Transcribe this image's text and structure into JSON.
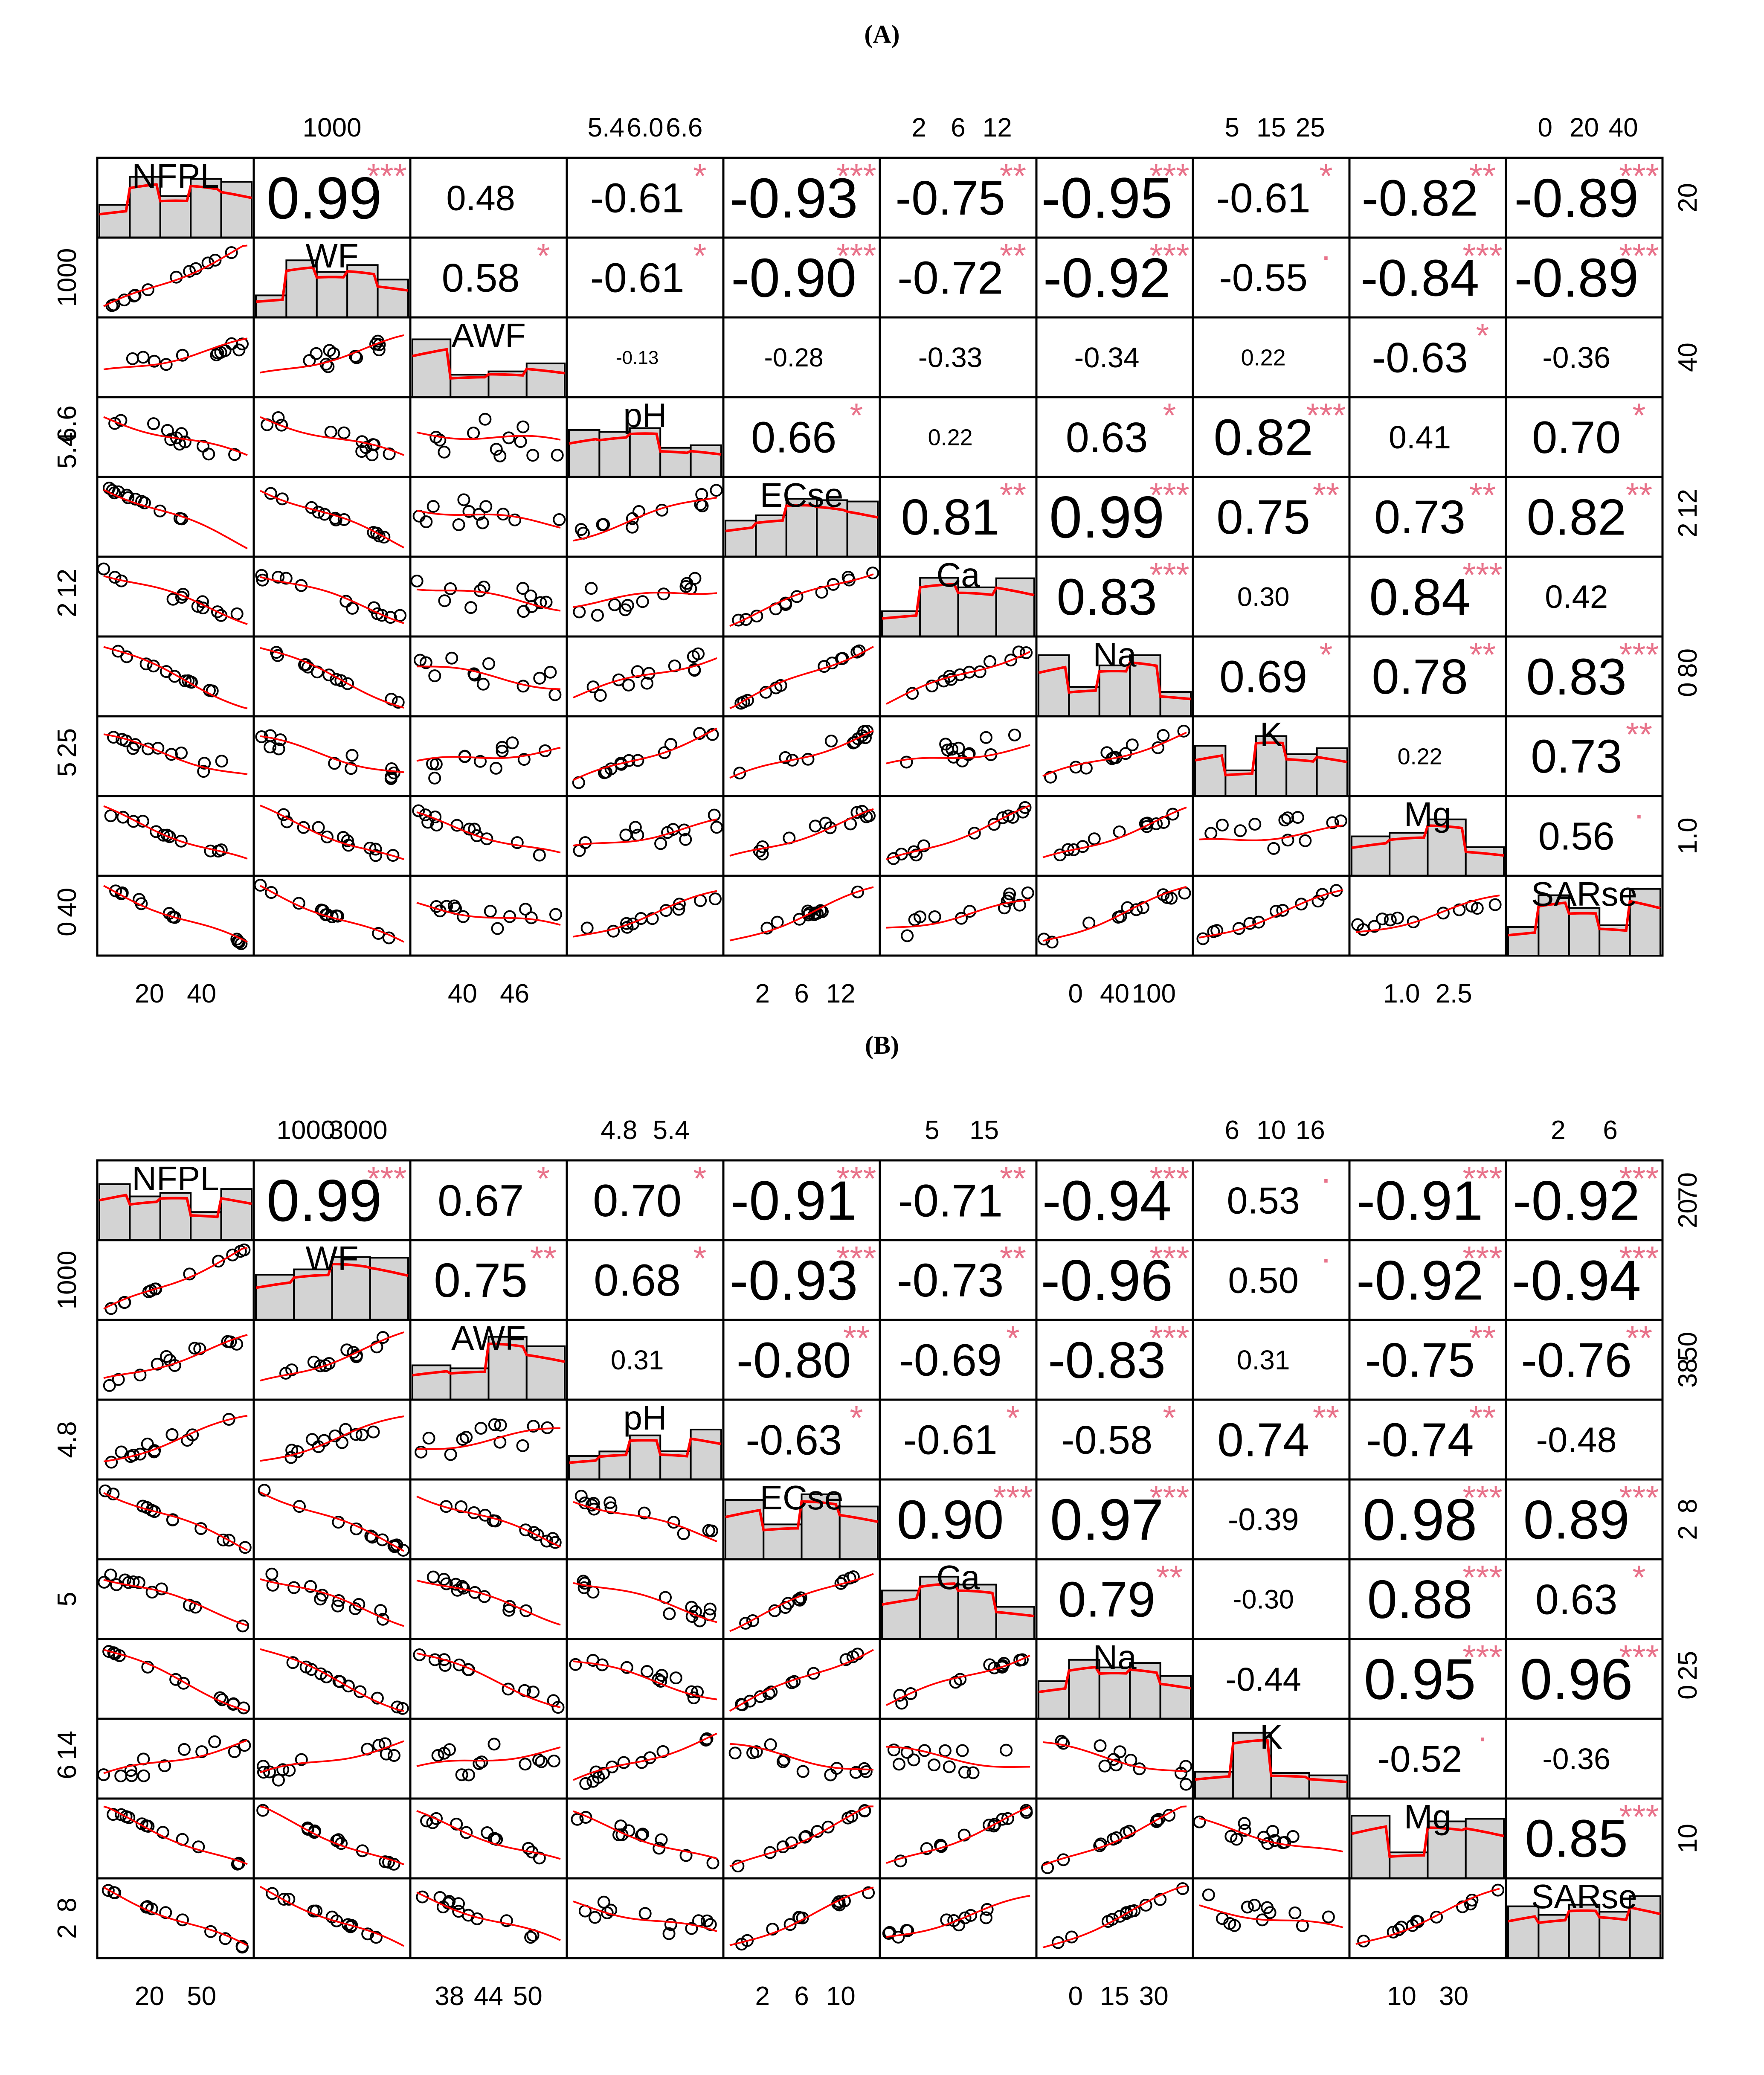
{
  "chart_data": [
    {
      "type": "correlation-matrix",
      "panel_label": "(A)",
      "variables": [
        "NFPL",
        "WF",
        "AWF",
        "pH",
        "ECse",
        "Ca",
        "Na",
        "K",
        "Mg",
        "SARse"
      ],
      "correlations": [
        [
          1,
          0.99,
          0.48,
          -0.61,
          -0.93,
          -0.75,
          -0.95,
          -0.61,
          -0.82,
          -0.89
        ],
        [
          0.99,
          1,
          0.58,
          -0.61,
          -0.9,
          -0.72,
          -0.92,
          -0.55,
          -0.84,
          -0.89
        ],
        [
          0.48,
          0.58,
          1,
          -0.13,
          -0.28,
          -0.33,
          -0.34,
          0.22,
          -0.63,
          -0.36
        ],
        [
          -0.61,
          -0.61,
          -0.13,
          1,
          0.66,
          0.22,
          0.63,
          0.82,
          0.41,
          0.7
        ],
        [
          -0.93,
          -0.9,
          -0.28,
          0.66,
          1,
          0.81,
          0.99,
          0.75,
          0.73,
          0.82
        ],
        [
          -0.75,
          -0.72,
          -0.33,
          0.22,
          0.81,
          1,
          0.83,
          0.3,
          0.84,
          0.42
        ],
        [
          -0.95,
          -0.92,
          -0.34,
          0.63,
          0.99,
          0.83,
          1,
          0.69,
          0.78,
          0.83
        ],
        [
          -0.61,
          -0.55,
          0.22,
          0.82,
          0.75,
          0.3,
          0.69,
          1,
          0.22,
          0.73
        ],
        [
          -0.82,
          -0.84,
          -0.63,
          0.41,
          0.73,
          0.84,
          0.78,
          0.22,
          1,
          0.56
        ],
        [
          -0.89,
          -0.89,
          -0.36,
          0.7,
          0.82,
          0.42,
          0.83,
          0.73,
          0.56,
          1
        ]
      ],
      "stars": [
        [
          "",
          "***",
          "",
          "*",
          "***",
          "**",
          "***",
          "*",
          "**",
          "***"
        ],
        [
          "***",
          "",
          "*",
          "*",
          "***",
          "**",
          "***",
          "·",
          "***",
          "***"
        ],
        [
          "",
          "*",
          "",
          "",
          "",
          "",
          "",
          "",
          "*",
          ""
        ],
        [
          "*",
          "*",
          "",
          "",
          "*",
          "",
          "*",
          "***",
          "",
          "*"
        ],
        [
          "***",
          "***",
          "",
          "*",
          "",
          "**",
          "***",
          "**",
          "**",
          "**"
        ],
        [
          "**",
          "**",
          "",
          "",
          "**",
          "",
          "***",
          "",
          "***",
          ""
        ],
        [
          "***",
          "***",
          "",
          "*",
          "***",
          "***",
          "",
          "*",
          "**",
          "***"
        ],
        [
          "*",
          "·",
          "",
          "***",
          "**",
          "",
          "*",
          "",
          "",
          "**"
        ],
        [
          "**",
          "***",
          "*",
          "",
          "**",
          "***",
          "**",
          "",
          "",
          "·"
        ],
        [
          "***",
          "***",
          "",
          "*",
          "**",
          "",
          "***",
          "**",
          "·",
          ""
        ]
      ],
      "correlation_labels": [
        [
          "",
          "0.99",
          "0.48",
          "-0.61",
          "-0.93",
          "-0.75",
          "-0.95",
          "-0.61",
          "-0.82",
          "-0.89"
        ],
        [
          "",
          "",
          "0.58",
          "-0.61",
          "-0.90",
          "-0.72",
          "-0.92",
          "-0.55",
          "-0.84",
          "-0.89"
        ],
        [
          "",
          "",
          "",
          "-0.13",
          "-0.28",
          "-0.33",
          "-0.34",
          "0.22",
          "-0.63",
          "-0.36"
        ],
        [
          "",
          "",
          "",
          "",
          "0.66",
          "0.22",
          "0.63",
          "0.82",
          "0.41",
          "0.70"
        ],
        [
          "",
          "",
          "",
          "",
          "",
          "0.81",
          "0.99",
          "0.75",
          "0.73",
          "0.82"
        ],
        [
          "",
          "",
          "",
          "",
          "",
          "",
          "0.83",
          "0.30",
          "0.84",
          "0.42"
        ],
        [
          "",
          "",
          "",
          "",
          "",
          "",
          "",
          "0.69",
          "0.78",
          "0.83"
        ],
        [
          "",
          "",
          "",
          "",
          "",
          "",
          "",
          "",
          "0.22",
          "0.73"
        ],
        [
          "",
          "",
          "",
          "",
          "",
          "",
          "",
          "",
          "",
          "0.56"
        ],
        [
          "",
          "",
          "",
          "",
          "",
          "",
          "",
          "",
          "",
          ""
        ]
      ],
      "axis_ticks": {
        "top": [
          {
            "col": 1,
            "ticks": [
              "1000"
            ]
          },
          {
            "col": 3,
            "ticks": [
              "5.4",
              "6.0",
              "6.6"
            ]
          },
          {
            "col": 5,
            "ticks": [
              "2",
              "6",
              "12"
            ]
          },
          {
            "col": 7,
            "ticks": [
              "5",
              "15",
              "25"
            ]
          },
          {
            "col": 9,
            "ticks": [
              "0",
              "20",
              "40"
            ]
          }
        ],
        "bottom": [
          {
            "col": 0,
            "ticks": [
              "20",
              "40"
            ]
          },
          {
            "col": 2,
            "ticks": [
              "40",
              "46"
            ]
          },
          {
            "col": 4,
            "ticks": [
              "2",
              "6",
              "12"
            ]
          },
          {
            "col": 6,
            "ticks": [
              "0",
              "40",
              "100"
            ]
          },
          {
            "col": 8,
            "ticks": [
              "1.0",
              "2.5"
            ]
          }
        ],
        "left": [
          {
            "row": 1,
            "ticks": [
              "1000"
            ]
          },
          {
            "row": 3,
            "ticks": [
              "5.4",
              "6.6"
            ]
          },
          {
            "row": 5,
            "ticks": [
              "2",
              "12"
            ]
          },
          {
            "row": 7,
            "ticks": [
              "5",
              "25"
            ]
          },
          {
            "row": 9,
            "ticks": [
              "0",
              "40"
            ]
          }
        ],
        "right": [
          {
            "row": 0,
            "ticks": [
              "20"
            ]
          },
          {
            "row": 2,
            "ticks": [
              "40"
            ]
          },
          {
            "row": 4,
            "ticks": [
              "2",
              "12"
            ]
          },
          {
            "row": 6,
            "ticks": [
              "0",
              "80"
            ]
          },
          {
            "row": 8,
            "ticks": [
              "1.0"
            ]
          }
        ]
      }
    },
    {
      "type": "correlation-matrix",
      "panel_label": "(B)",
      "variables": [
        "NFPL",
        "WF",
        "AWF",
        "pH",
        "ECse",
        "Ca",
        "Na",
        "K",
        "Mg",
        "SARse"
      ],
      "correlations": [
        [
          1,
          0.99,
          0.67,
          0.7,
          -0.91,
          -0.71,
          -0.94,
          0.53,
          -0.91,
          -0.92
        ],
        [
          0.99,
          1,
          0.75,
          0.68,
          -0.93,
          -0.73,
          -0.96,
          0.5,
          -0.92,
          -0.94
        ],
        [
          0.67,
          0.75,
          1,
          0.31,
          -0.8,
          -0.69,
          -0.83,
          0.31,
          -0.75,
          -0.76
        ],
        [
          0.7,
          0.68,
          0.31,
          1,
          -0.63,
          -0.61,
          -0.58,
          0.74,
          -0.74,
          -0.48
        ],
        [
          -0.91,
          -0.93,
          -0.8,
          -0.63,
          1,
          0.9,
          0.97,
          -0.39,
          0.98,
          0.89
        ],
        [
          -0.71,
          -0.73,
          -0.69,
          -0.61,
          0.9,
          1,
          0.79,
          -0.3,
          0.88,
          0.63
        ],
        [
          -0.94,
          -0.96,
          -0.83,
          -0.58,
          0.97,
          0.79,
          1,
          -0.44,
          0.95,
          0.96
        ],
        [
          0.53,
          0.5,
          0.31,
          0.74,
          -0.39,
          -0.3,
          -0.44,
          1,
          -0.52,
          -0.36
        ],
        [
          -0.91,
          -0.92,
          -0.75,
          -0.74,
          0.98,
          0.88,
          0.95,
          -0.52,
          1,
          0.85
        ],
        [
          -0.92,
          -0.94,
          -0.76,
          -0.48,
          0.89,
          0.63,
          0.96,
          -0.36,
          0.85,
          1
        ]
      ],
      "stars": [
        [
          "",
          "***",
          "*",
          "*",
          "***",
          "**",
          "***",
          "·",
          "***",
          "***"
        ],
        [
          "***",
          "",
          "**",
          "*",
          "***",
          "**",
          "***",
          "·",
          "***",
          "***"
        ],
        [
          "*",
          "**",
          "",
          "",
          "**",
          "*",
          "***",
          "",
          "**",
          "**"
        ],
        [
          "*",
          "*",
          "",
          "",
          "*",
          "*",
          "*",
          "**",
          "**",
          ""
        ],
        [
          "***",
          "***",
          "**",
          "*",
          "",
          "***",
          "***",
          "",
          "***",
          "***"
        ],
        [
          "**",
          "**",
          "*",
          "*",
          "***",
          "",
          "**",
          "",
          "***",
          "*"
        ],
        [
          "***",
          "***",
          "***",
          "*",
          "***",
          "**",
          "",
          "",
          "***",
          "***"
        ],
        [
          "·",
          "·",
          "",
          "**",
          "",
          "",
          "",
          "",
          "·",
          ""
        ],
        [
          "***",
          "***",
          "**",
          "**",
          "***",
          "***",
          "***",
          "·",
          "",
          "***"
        ],
        [
          "***",
          "***",
          "**",
          "",
          "***",
          "*",
          "***",
          "",
          "***",
          ""
        ]
      ],
      "correlation_labels": [
        [
          "",
          "0.99",
          "0.67",
          "0.70",
          "-0.91",
          "-0.71",
          "-0.94",
          "0.53",
          "-0.91",
          "-0.92"
        ],
        [
          "",
          "",
          "0.75",
          "0.68",
          "-0.93",
          "-0.73",
          "-0.96",
          "0.50",
          "-0.92",
          "-0.94"
        ],
        [
          "",
          "",
          "",
          "0.31",
          "-0.80",
          "-0.69",
          "-0.83",
          "0.31",
          "-0.75",
          "-0.76"
        ],
        [
          "",
          "",
          "",
          "",
          "-0.63",
          "-0.61",
          "-0.58",
          "0.74",
          "-0.74",
          "-0.48"
        ],
        [
          "",
          "",
          "",
          "",
          "",
          "0.90",
          "0.97",
          "-0.39",
          "0.98",
          "0.89"
        ],
        [
          "",
          "",
          "",
          "",
          "",
          "",
          "0.79",
          "-0.30",
          "0.88",
          "0.63"
        ],
        [
          "",
          "",
          "",
          "",
          "",
          "",
          "",
          "-0.44",
          "0.95",
          "0.96"
        ],
        [
          "",
          "",
          "",
          "",
          "",
          "",
          "",
          "",
          "-0.52",
          "-0.36"
        ],
        [
          "",
          "",
          "",
          "",
          "",
          "",
          "",
          "",
          "",
          "0.85"
        ],
        [
          "",
          "",
          "",
          "",
          "",
          "",
          "",
          "",
          "",
          ""
        ]
      ],
      "axis_ticks": {
        "top": [
          {
            "col": 1,
            "ticks": [
              "1000",
              "3000"
            ]
          },
          {
            "col": 3,
            "ticks": [
              "4.8",
              "5.4"
            ]
          },
          {
            "col": 5,
            "ticks": [
              "5",
              "15"
            ]
          },
          {
            "col": 7,
            "ticks": [
              "6",
              "10",
              "16"
            ]
          },
          {
            "col": 9,
            "ticks": [
              "2",
              "6"
            ]
          }
        ],
        "bottom": [
          {
            "col": 0,
            "ticks": [
              "20",
              "50"
            ]
          },
          {
            "col": 2,
            "ticks": [
              "38",
              "44",
              "50"
            ]
          },
          {
            "col": 4,
            "ticks": [
              "2",
              "6",
              "10"
            ]
          },
          {
            "col": 6,
            "ticks": [
              "0",
              "15",
              "30"
            ]
          },
          {
            "col": 8,
            "ticks": [
              "10",
              "30"
            ]
          }
        ],
        "left": [
          {
            "row": 1,
            "ticks": [
              "1000"
            ]
          },
          {
            "row": 3,
            "ticks": [
              "4.8"
            ]
          },
          {
            "row": 5,
            "ticks": [
              "5"
            ]
          },
          {
            "row": 7,
            "ticks": [
              "6",
              "14"
            ]
          },
          {
            "row": 9,
            "ticks": [
              "2",
              "8"
            ]
          }
        ],
        "right": [
          {
            "row": 0,
            "ticks": [
              "20",
              "70"
            ]
          },
          {
            "row": 2,
            "ticks": [
              "38",
              "50"
            ]
          },
          {
            "row": 4,
            "ticks": [
              "2",
              "8"
            ]
          },
          {
            "row": 6,
            "ticks": [
              "0",
              "25"
            ]
          },
          {
            "row": 8,
            "ticks": [
              "10"
            ]
          }
        ]
      }
    }
  ],
  "colors": {
    "smooth_line": "#ff0000",
    "stars": "#e8728a",
    "histogram_fill": "#d3d3d3",
    "frame": "#000000",
    "text": "#000000"
  }
}
